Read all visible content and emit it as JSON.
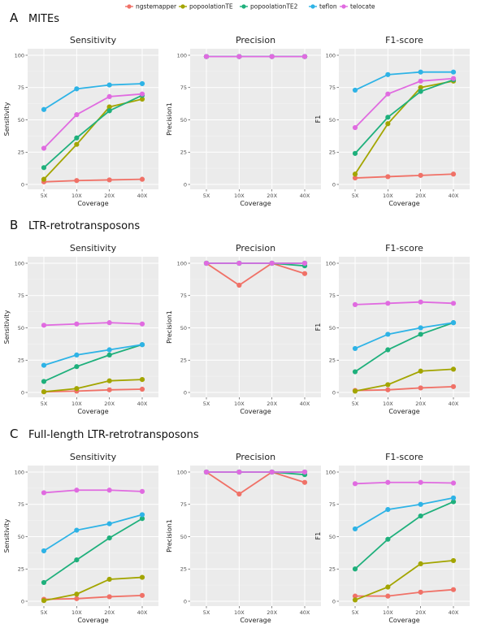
{
  "colors": {
    "ngstemapper": "#F07167",
    "popoolationTE": "#A3A500",
    "popoolationTE2": "#1FB07C",
    "teflon": "#2EB3E6",
    "telocate": "#E06BE0",
    "panel_bg": "#EBEBEB",
    "grid": "#FFFFFF"
  },
  "legend": [
    "ngstemapper",
    "popoolationTE",
    "popoolationTE2",
    "teflon",
    "telocate"
  ],
  "chart_data": [
    {
      "section_label": "A",
      "section_title": "MITEs",
      "panels": [
        {
          "type": "line",
          "title": "Sensitivity",
          "xlabel": "Coverage",
          "ylabel": "Sensitivity",
          "categories": [
            "5X",
            "10X",
            "20X",
            "40X"
          ],
          "ylim": [
            0,
            100
          ],
          "yticks": [
            "0",
            "25",
            "50",
            "75",
            "100"
          ],
          "series": [
            {
              "name": "ngstemapper",
              "values": [
                2,
                3,
                3.5,
                4
              ]
            },
            {
              "name": "popoolationTE",
              "values": [
                4,
                31,
                60,
                66
              ]
            },
            {
              "name": "popoolationTE2",
              "values": [
                13,
                36,
                57,
                69
              ]
            },
            {
              "name": "teflon",
              "values": [
                58,
                74,
                77,
                78
              ]
            },
            {
              "name": "telocate",
              "values": [
                28,
                54,
                68,
                70
              ]
            }
          ]
        },
        {
          "type": "line",
          "title": "Precision",
          "xlabel": "Coverage",
          "ylabel": "Precision1",
          "categories": [
            "5X",
            "10X",
            "20X",
            "40X"
          ],
          "ylim": [
            0,
            100
          ],
          "yticks": [
            "0",
            "25",
            "50",
            "75",
            "100"
          ],
          "series": [
            {
              "name": "ngstemapper",
              "values": [
                99,
                99,
                99,
                99
              ]
            },
            {
              "name": "popoolationTE",
              "values": [
                99,
                99,
                99,
                99
              ]
            },
            {
              "name": "popoolationTE2",
              "values": [
                99,
                99,
                99,
                99
              ]
            },
            {
              "name": "teflon",
              "values": [
                99,
                99,
                99,
                99
              ]
            },
            {
              "name": "telocate",
              "values": [
                99,
                99,
                99,
                99
              ]
            }
          ]
        },
        {
          "type": "line",
          "title": "F1-score",
          "xlabel": "Coverage",
          "ylabel": "F1",
          "categories": [
            "5X",
            "10X",
            "20X",
            "40X"
          ],
          "ylim": [
            0,
            100
          ],
          "yticks": [
            "0",
            "25",
            "50",
            "75",
            "100"
          ],
          "series": [
            {
              "name": "ngstemapper",
              "values": [
                5,
                6,
                7,
                8
              ]
            },
            {
              "name": "popoolationTE",
              "values": [
                8,
                47,
                75,
                80
              ]
            },
            {
              "name": "popoolationTE2",
              "values": [
                24,
                52,
                72,
                81
              ]
            },
            {
              "name": "teflon",
              "values": [
                73,
                85,
                87,
                87
              ]
            },
            {
              "name": "telocate",
              "values": [
                44,
                70,
                80,
                82
              ]
            }
          ]
        }
      ]
    },
    {
      "section_label": "B",
      "section_title": "LTR-retrotransposons",
      "panels": [
        {
          "type": "line",
          "title": "Sensitivity",
          "xlabel": "Coverage",
          "ylabel": "Sensitivity",
          "categories": [
            "5X",
            "10X",
            "20X",
            "40X"
          ],
          "ylim": [
            0,
            100
          ],
          "yticks": [
            "0",
            "25",
            "50",
            "75",
            "100"
          ],
          "series": [
            {
              "name": "ngstemapper",
              "values": [
                0.5,
                1,
                2,
                2.5
              ]
            },
            {
              "name": "popoolationTE",
              "values": [
                0.5,
                3,
                9,
                10
              ]
            },
            {
              "name": "popoolationTE2",
              "values": [
                8.5,
                20,
                29,
                37
              ]
            },
            {
              "name": "teflon",
              "values": [
                21,
                29,
                33,
                37
              ]
            },
            {
              "name": "telocate",
              "values": [
                52,
                53,
                54,
                53
              ]
            }
          ]
        },
        {
          "type": "line",
          "title": "Precision",
          "xlabel": "Coverage",
          "ylabel": "Precision1",
          "categories": [
            "5X",
            "10X",
            "20X",
            "40X"
          ],
          "ylim": [
            0,
            100
          ],
          "yticks": [
            "0",
            "25",
            "50",
            "75",
            "100"
          ],
          "series": [
            {
              "name": "ngstemapper",
              "values": [
                100,
                83,
                100,
                92
              ]
            },
            {
              "name": "popoolationTE",
              "values": [
                100,
                100,
                100,
                100
              ]
            },
            {
              "name": "popoolationTE2",
              "values": [
                100,
                100,
                100,
                98
              ]
            },
            {
              "name": "teflon",
              "values": [
                100,
                100,
                100,
                100
              ]
            },
            {
              "name": "telocate",
              "values": [
                100,
                100,
                100,
                100
              ]
            }
          ]
        },
        {
          "type": "line",
          "title": "F1-score",
          "xlabel": "Coverage",
          "ylabel": "F1",
          "categories": [
            "5X",
            "10X",
            "20X",
            "40X"
          ],
          "ylim": [
            0,
            100
          ],
          "yticks": [
            "0",
            "25",
            "50",
            "75",
            "100"
          ],
          "series": [
            {
              "name": "ngstemapper",
              "values": [
                1.5,
                2,
                3.5,
                4.5
              ]
            },
            {
              "name": "popoolationTE",
              "values": [
                1,
                6,
                16.5,
                18
              ]
            },
            {
              "name": "popoolationTE2",
              "values": [
                16,
                33,
                45,
                54
              ]
            },
            {
              "name": "teflon",
              "values": [
                34,
                45,
                50,
                54
              ]
            },
            {
              "name": "telocate",
              "values": [
                68,
                69,
                70,
                69
              ]
            }
          ]
        }
      ]
    },
    {
      "section_label": "C",
      "section_title": "Full-length LTR-retrotransposons",
      "panels": [
        {
          "type": "line",
          "title": "Sensitivity",
          "xlabel": "Coverage",
          "ylabel": "Sensitivity",
          "categories": [
            "5X",
            "10X",
            "20X",
            "40X"
          ],
          "ylim": [
            0,
            100
          ],
          "yticks": [
            "0",
            "25",
            "50",
            "75",
            "100"
          ],
          "series": [
            {
              "name": "ngstemapper",
              "values": [
                1.5,
                2,
                3.5,
                4.5
              ]
            },
            {
              "name": "popoolationTE",
              "values": [
                0.5,
                5.5,
                17,
                18.5
              ]
            },
            {
              "name": "popoolationTE2",
              "values": [
                14.5,
                32,
                49,
                64
              ]
            },
            {
              "name": "teflon",
              "values": [
                39,
                55,
                60,
                67
              ]
            },
            {
              "name": "telocate",
              "values": [
                84,
                86,
                86,
                85
              ]
            }
          ]
        },
        {
          "type": "line",
          "title": "Precision",
          "xlabel": "Coverage",
          "ylabel": "Precision1",
          "categories": [
            "5X",
            "10X",
            "20X",
            "40X"
          ],
          "ylim": [
            0,
            100
          ],
          "yticks": [
            "0",
            "25",
            "50",
            "75",
            "100"
          ],
          "series": [
            {
              "name": "ngstemapper",
              "values": [
                100,
                83,
                100,
                92
              ]
            },
            {
              "name": "popoolationTE",
              "values": [
                100,
                100,
                100,
                100
              ]
            },
            {
              "name": "popoolationTE2",
              "values": [
                100,
                100,
                100,
                98
              ]
            },
            {
              "name": "teflon",
              "values": [
                100,
                100,
                100,
                100
              ]
            },
            {
              "name": "telocate",
              "values": [
                100,
                100,
                100,
                100
              ]
            }
          ]
        },
        {
          "type": "line",
          "title": "F1-score",
          "xlabel": "Coverage",
          "ylabel": "F1",
          "categories": [
            "5X",
            "10X",
            "20X",
            "40X"
          ],
          "ylim": [
            0,
            100
          ],
          "yticks": [
            "0",
            "25",
            "50",
            "75",
            "100"
          ],
          "series": [
            {
              "name": "ngstemapper",
              "values": [
                4,
                4,
                7,
                9
              ]
            },
            {
              "name": "popoolationTE",
              "values": [
                1,
                11,
                29,
                31.5
              ]
            },
            {
              "name": "popoolationTE2",
              "values": [
                25,
                48,
                66,
                77
              ]
            },
            {
              "name": "teflon",
              "values": [
                56,
                71,
                75,
                80
              ]
            },
            {
              "name": "telocate",
              "values": [
                91,
                92,
                92,
                91.5
              ]
            }
          ]
        }
      ]
    }
  ]
}
